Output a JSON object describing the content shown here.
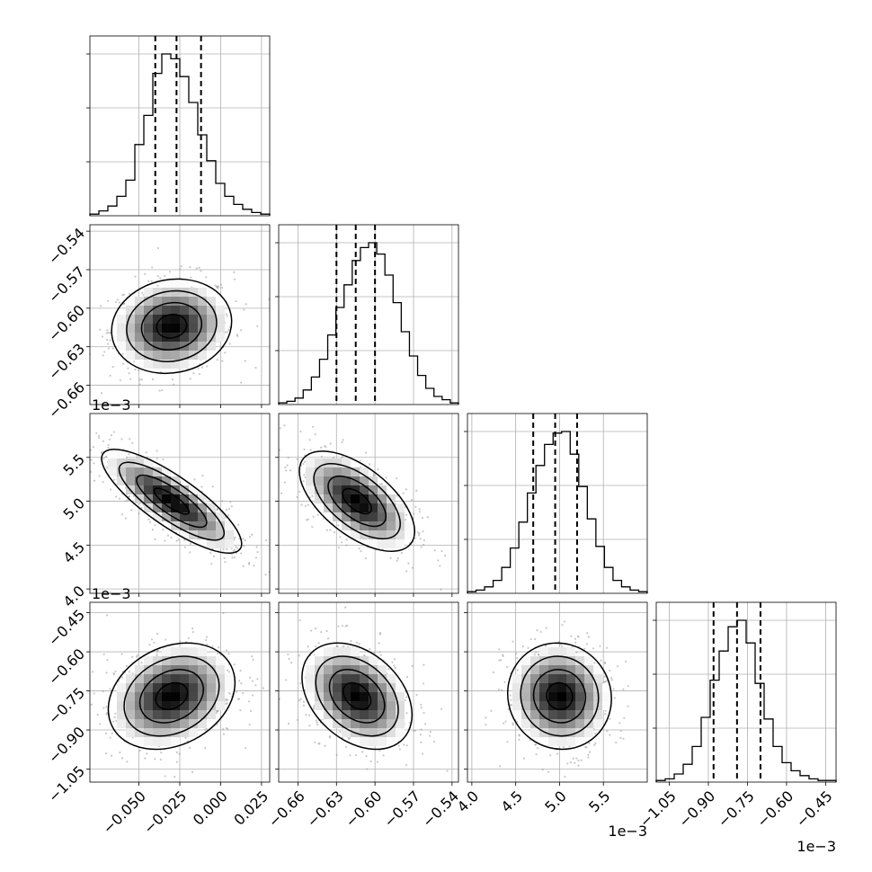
{
  "chart_data": {
    "type": "corner",
    "grid": true,
    "offset_text": "1e−3",
    "params": [
      {
        "range": [
          -0.08,
          0.03
        ],
        "ticks": [
          -0.05,
          -0.025,
          0.0,
          0.025
        ],
        "tick_labels": [
          "−0.050",
          "−0.025",
          "0.000",
          "0.025"
        ],
        "quantiles": [
          -0.04,
          -0.027,
          -0.012
        ],
        "hist": [
          1,
          3,
          6,
          12,
          22,
          44,
          62,
          88,
          100,
          97,
          86,
          70,
          50,
          34,
          20,
          12,
          7,
          4,
          2,
          1
        ]
      },
      {
        "range": [
          -0.675,
          -0.535
        ],
        "ticks": [
          -0.66,
          -0.63,
          -0.6,
          -0.57,
          -0.54
        ],
        "tick_labels": [
          "−0.66",
          "−0.63",
          "−0.60",
          "−0.57",
          "−0.54"
        ],
        "quantiles": [
          -0.63,
          -0.615,
          -0.6
        ],
        "hist": [
          1,
          2,
          4,
          9,
          17,
          28,
          43,
          60,
          74,
          89,
          97,
          100,
          93,
          80,
          63,
          45,
          30,
          18,
          10,
          5,
          3,
          1
        ]
      },
      {
        "range": [
          3.95,
          6.0
        ],
        "scale": "1e−3",
        "ticks": [
          4.0,
          4.5,
          5.0,
          5.5
        ],
        "tick_labels": [
          "4.0",
          "4.5",
          "5.0",
          "5.5"
        ],
        "quantiles": [
          4.7,
          4.95,
          5.2
        ],
        "hist": [
          1,
          2,
          4,
          8,
          16,
          28,
          44,
          62,
          79,
          92,
          99,
          100,
          86,
          66,
          46,
          29,
          16,
          8,
          4,
          2,
          1
        ]
      },
      {
        "range": [
          -1.1,
          -0.41
        ],
        "scale": "1e−3",
        "ticks": [
          -1.05,
          -0.9,
          -0.75,
          -0.6,
          -0.45
        ],
        "tick_labels": [
          "−1.05",
          "−0.90",
          "−0.75",
          "−0.60",
          "−0.45"
        ],
        "quantiles": [
          -0.88,
          -0.79,
          -0.7
        ],
        "hist": [
          1,
          2,
          5,
          11,
          22,
          40,
          63,
          81,
          96,
          100,
          86,
          61,
          39,
          22,
          12,
          7,
          4,
          2,
          1,
          1
        ]
      }
    ],
    "pairs": [
      {
        "x": 0,
        "y": 1,
        "center": [
          -0.03,
          -0.614
        ],
        "sd": [
          0.018,
          0.018
        ],
        "rho": 0.1
      },
      {
        "x": 0,
        "y": 2,
        "center": [
          -0.03,
          5.0
        ],
        "sd": [
          0.021,
          0.29
        ],
        "rho": -0.82
      },
      {
        "x": 1,
        "y": 2,
        "center": [
          -0.614,
          5.0
        ],
        "sd": [
          0.022,
          0.28
        ],
        "rho": -0.6
      },
      {
        "x": 0,
        "y": 3,
        "center": [
          -0.03,
          -0.77
        ],
        "sd": [
          0.019,
          0.1
        ],
        "rho": 0.25
      },
      {
        "x": 1,
        "y": 3,
        "center": [
          -0.614,
          -0.77
        ],
        "sd": [
          0.021,
          0.1
        ],
        "rho": -0.35
      },
      {
        "x": 2,
        "y": 3,
        "center": [
          5.0,
          -0.77
        ],
        "sd": [
          0.29,
          0.1
        ],
        "rho": -0.05
      }
    ]
  }
}
